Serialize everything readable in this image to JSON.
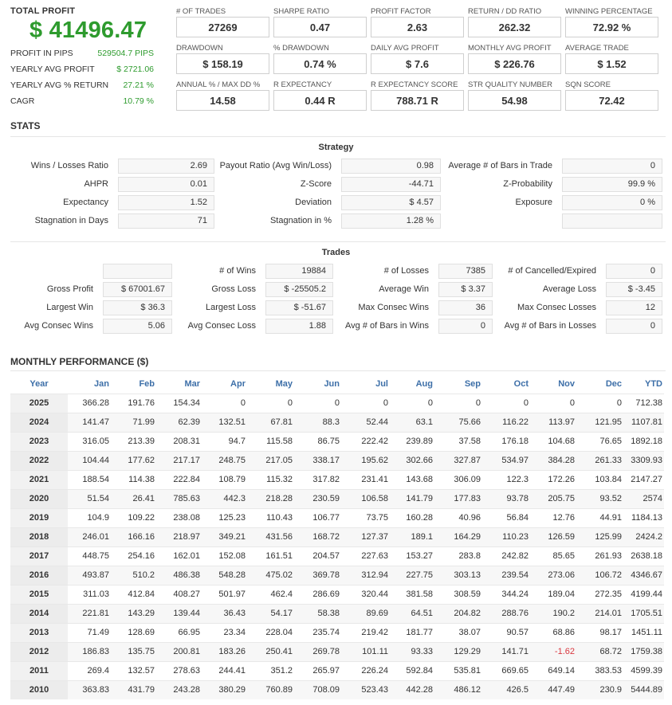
{
  "summary": {
    "total_profit_label": "TOTAL PROFIT",
    "total_profit_value": "$ 41496.47",
    "rows": [
      {
        "label": "PROFIT IN PIPS",
        "value": "529504.7 PIPS"
      },
      {
        "label": "YEARLY AVG PROFIT",
        "value": "$ 2721.06"
      },
      {
        "label": "YEARLY AVG % RETURN",
        "value": "27.21 %"
      },
      {
        "label": "CAGR",
        "value": "10.79 %"
      }
    ]
  },
  "kpis": [
    {
      "label": "# OF TRADES",
      "value": "27269"
    },
    {
      "label": "SHARPE RATIO",
      "value": "0.47"
    },
    {
      "label": "PROFIT FACTOR",
      "value": "2.63"
    },
    {
      "label": "RETURN / DD RATIO",
      "value": "262.32"
    },
    {
      "label": "WINNING PERCENTAGE",
      "value": "72.92 %"
    },
    {
      "label": "DRAWDOWN",
      "value": "$ 158.19"
    },
    {
      "label": "% DRAWDOWN",
      "value": "0.74 %"
    },
    {
      "label": "DAILY AVG PROFIT",
      "value": "$ 7.6"
    },
    {
      "label": "MONTHLY AVG PROFIT",
      "value": "$ 226.76"
    },
    {
      "label": "AVERAGE TRADE",
      "value": "$ 1.52"
    },
    {
      "label": "ANNUAL % / MAX DD %",
      "value": "14.58"
    },
    {
      "label": "R EXPECTANCY",
      "value": "0.44 R"
    },
    {
      "label": "R EXPECTANCY SCORE",
      "value": "788.71 R"
    },
    {
      "label": "STR QUALITY NUMBER",
      "value": "54.98"
    },
    {
      "label": "SQN SCORE",
      "value": "72.42"
    }
  ],
  "stats_title": "STATS",
  "strategy": {
    "title": "Strategy",
    "rows": [
      [
        {
          "label": "Wins / Losses Ratio",
          "value": "2.69"
        },
        {
          "label": "Payout Ratio (Avg Win/Loss)",
          "value": "0.98"
        },
        {
          "label": "Average # of Bars in Trade",
          "value": "0"
        }
      ],
      [
        {
          "label": "AHPR",
          "value": "0.01"
        },
        {
          "label": "Z-Score",
          "value": "-44.71"
        },
        {
          "label": "Z-Probability",
          "value": "99.9 %"
        }
      ],
      [
        {
          "label": "Expectancy",
          "value": "1.52"
        },
        {
          "label": "Deviation",
          "value": "$ 4.57"
        },
        {
          "label": "Exposure",
          "value": "0 %"
        }
      ],
      [
        {
          "label": "Stagnation in Days",
          "value": "71"
        },
        {
          "label": "Stagnation in %",
          "value": "1.28 %"
        },
        {
          "label": "",
          "value": ""
        }
      ]
    ]
  },
  "trades": {
    "title": "Trades",
    "rows": [
      [
        {
          "label": "",
          "value": ""
        },
        {
          "label": "# of Wins",
          "value": "19884"
        },
        {
          "label": "# of Losses",
          "value": "7385"
        },
        {
          "label": "# of Cancelled/Expired",
          "value": "0"
        }
      ],
      [
        {
          "label": "Gross Profit",
          "value": "$ 67001.67"
        },
        {
          "label": "Gross Loss",
          "value": "$ -25505.2"
        },
        {
          "label": "Average Win",
          "value": "$ 3.37"
        },
        {
          "label": "Average Loss",
          "value": "$ -3.45"
        }
      ],
      [
        {
          "label": "Largest Win",
          "value": "$ 36.3"
        },
        {
          "label": "Largest Loss",
          "value": "$ -51.67"
        },
        {
          "label": "Max Consec Wins",
          "value": "36"
        },
        {
          "label": "Max Consec Losses",
          "value": "12"
        }
      ],
      [
        {
          "label": "Avg Consec Wins",
          "value": "5.06"
        },
        {
          "label": "Avg Consec Loss",
          "value": "1.88"
        },
        {
          "label": "Avg # of Bars in Wins",
          "value": "0"
        },
        {
          "label": "Avg # of Bars in Losses",
          "value": "0"
        }
      ]
    ]
  },
  "monthly": {
    "title": "MONTHLY PERFORMANCE ($)",
    "headers": [
      "Year",
      "Jan",
      "Feb",
      "Mar",
      "Apr",
      "May",
      "Jun",
      "Jul",
      "Aug",
      "Sep",
      "Oct",
      "Nov",
      "Dec",
      "YTD"
    ],
    "rows": [
      [
        "2025",
        "366.28",
        "191.76",
        "154.34",
        "0",
        "0",
        "0",
        "0",
        "0",
        "0",
        "0",
        "0",
        "0",
        "712.38"
      ],
      [
        "2024",
        "141.47",
        "71.99",
        "62.39",
        "132.51",
        "67.81",
        "88.3",
        "52.44",
        "63.1",
        "75.66",
        "116.22",
        "113.97",
        "121.95",
        "1107.81"
      ],
      [
        "2023",
        "316.05",
        "213.39",
        "208.31",
        "94.7",
        "115.58",
        "86.75",
        "222.42",
        "239.89",
        "37.58",
        "176.18",
        "104.68",
        "76.65",
        "1892.18"
      ],
      [
        "2022",
        "104.44",
        "177.62",
        "217.17",
        "248.75",
        "217.05",
        "338.17",
        "195.62",
        "302.66",
        "327.87",
        "534.97",
        "384.28",
        "261.33",
        "3309.93"
      ],
      [
        "2021",
        "188.54",
        "114.38",
        "222.84",
        "108.79",
        "115.32",
        "317.82",
        "231.41",
        "143.68",
        "306.09",
        "122.3",
        "172.26",
        "103.84",
        "2147.27"
      ],
      [
        "2020",
        "51.54",
        "26.41",
        "785.63",
        "442.3",
        "218.28",
        "230.59",
        "106.58",
        "141.79",
        "177.83",
        "93.78",
        "205.75",
        "93.52",
        "2574"
      ],
      [
        "2019",
        "104.9",
        "109.22",
        "238.08",
        "125.23",
        "110.43",
        "106.77",
        "73.75",
        "160.28",
        "40.96",
        "56.84",
        "12.76",
        "44.91",
        "1184.13"
      ],
      [
        "2018",
        "246.01",
        "166.16",
        "218.97",
        "349.21",
        "431.56",
        "168.72",
        "127.37",
        "189.1",
        "164.29",
        "110.23",
        "126.59",
        "125.99",
        "2424.2"
      ],
      [
        "2017",
        "448.75",
        "254.16",
        "162.01",
        "152.08",
        "161.51",
        "204.57",
        "227.63",
        "153.27",
        "283.8",
        "242.82",
        "85.65",
        "261.93",
        "2638.18"
      ],
      [
        "2016",
        "493.87",
        "510.2",
        "486.38",
        "548.28",
        "475.02",
        "369.78",
        "312.94",
        "227.75",
        "303.13",
        "239.54",
        "273.06",
        "106.72",
        "4346.67"
      ],
      [
        "2015",
        "311.03",
        "412.84",
        "408.27",
        "501.97",
        "462.4",
        "286.69",
        "320.44",
        "381.58",
        "308.59",
        "344.24",
        "189.04",
        "272.35",
        "4199.44"
      ],
      [
        "2014",
        "221.81",
        "143.29",
        "139.44",
        "36.43",
        "54.17",
        "58.38",
        "89.69",
        "64.51",
        "204.82",
        "288.76",
        "190.2",
        "214.01",
        "1705.51"
      ],
      [
        "2013",
        "71.49",
        "128.69",
        "66.95",
        "23.34",
        "228.04",
        "235.74",
        "219.42",
        "181.77",
        "38.07",
        "90.57",
        "68.86",
        "98.17",
        "1451.11"
      ],
      [
        "2012",
        "186.83",
        "135.75",
        "200.81",
        "183.26",
        "250.41",
        "269.78",
        "101.11",
        "93.33",
        "129.29",
        "141.71",
        "-1.62",
        "68.72",
        "1759.38"
      ],
      [
        "2011",
        "269.4",
        "132.57",
        "278.63",
        "244.41",
        "351.2",
        "265.97",
        "226.24",
        "592.84",
        "535.81",
        "669.65",
        "649.14",
        "383.53",
        "4599.39"
      ],
      [
        "2010",
        "363.83",
        "431.79",
        "243.28",
        "380.29",
        "760.89",
        "708.09",
        "523.43",
        "442.28",
        "486.12",
        "426.5",
        "447.49",
        "230.9",
        "5444.89"
      ]
    ]
  }
}
